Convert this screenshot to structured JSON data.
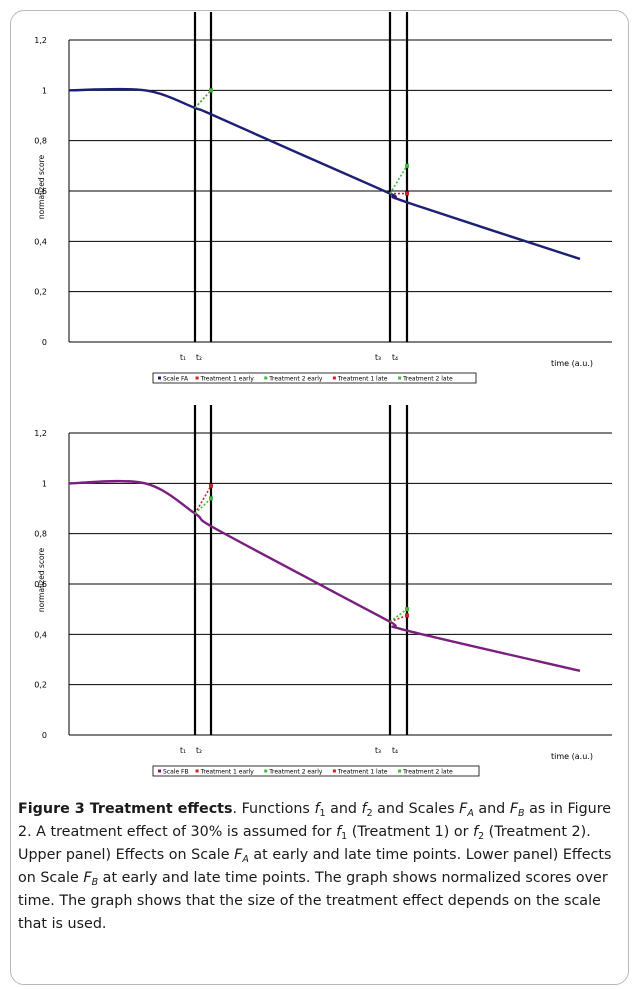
{
  "chart_data": [
    {
      "panel": "upper",
      "type": "line",
      "ylabel": "normalized score",
      "xlabel": "time (a.u.)",
      "ylim": [
        0,
        1.2
      ],
      "yticks": [
        "0",
        "0,2",
        "0,4",
        "0,6",
        "0,8",
        "1",
        "1,2"
      ],
      "xtick_labels": [
        "t₁",
        "t₂",
        "t₃",
        "t₄"
      ],
      "line_color": "#1c2075",
      "curve": {
        "name": "Scale FA",
        "start": 1.0,
        "end": 0.33
      },
      "vlines": [
        {
          "label": "t₁",
          "y": 0.93
        },
        {
          "label": "t₂",
          "y": 0.905
        },
        {
          "label": "t₃",
          "y": 0.59
        },
        {
          "label": "t₄",
          "y": 0.555
        }
      ],
      "effects": [
        {
          "series": "Treatment 1 early",
          "from": 0.93,
          "to": 1.0,
          "color": "#cc2222"
        },
        {
          "series": "Treatment 2 early",
          "from": 0.93,
          "to": 1.0,
          "color": "#3dbb3d"
        },
        {
          "series": "Treatment 1 late",
          "from": 0.59,
          "to": 0.59,
          "color": "#cc2222"
        },
        {
          "series": "Treatment 2 late",
          "from": 0.59,
          "to": 0.7,
          "color": "#3dbb3d"
        }
      ],
      "legend": [
        {
          "name": "Scale FA",
          "color": "#1c2075"
        },
        {
          "name": "Treatment 1 early",
          "color": "#cc2222"
        },
        {
          "name": "Treatment 2 early",
          "color": "#3dbb3d"
        },
        {
          "name": "Treatment 1 late",
          "color": "#cc2222"
        },
        {
          "name": "Treatment 2 late",
          "color": "#3dbb3d"
        }
      ]
    },
    {
      "panel": "lower",
      "type": "line",
      "ylabel": "normalized score",
      "xlabel": "time (a.u.)",
      "ylim": [
        0,
        1.2
      ],
      "yticks": [
        "0",
        "0,2",
        "0,4",
        "0,6",
        "0,8",
        "1",
        "1,2"
      ],
      "xtick_labels": [
        "t₁",
        "t₂",
        "t₃",
        "t₄"
      ],
      "line_color": "#7a1f7f",
      "curve": {
        "name": "Scale FB",
        "start": 1.0,
        "end": 0.255
      },
      "vlines": [
        {
          "label": "t₁",
          "y": 0.88
        },
        {
          "label": "t₂",
          "y": 0.83
        },
        {
          "label": "t₃",
          "y": 0.45
        },
        {
          "label": "t₄",
          "y": 0.415
        }
      ],
      "effects": [
        {
          "series": "Treatment 1 early",
          "from": 0.88,
          "to": 0.99,
          "color": "#cc2222"
        },
        {
          "series": "Treatment 2 early",
          "from": 0.88,
          "to": 0.94,
          "color": "#3dbb3d"
        },
        {
          "series": "Treatment 1 late",
          "from": 0.45,
          "to": 0.475,
          "color": "#cc2222"
        },
        {
          "series": "Treatment 2 late",
          "from": 0.45,
          "to": 0.5,
          "color": "#3dbb3d"
        }
      ],
      "legend": [
        {
          "name": "Scale FB",
          "color": "#7a1f7f"
        },
        {
          "name": "Treatment 1 early",
          "color": "#cc2222"
        },
        {
          "name": "Treatment 2 early",
          "color": "#3dbb3d"
        },
        {
          "name": "Treatment 1 late",
          "color": "#cc2222"
        },
        {
          "name": "Treatment 2 late",
          "color": "#3dbb3d"
        }
      ]
    }
  ],
  "caption": {
    "title": "Figure 3 Treatment effects",
    "p1": ". Functions ",
    "f": "f",
    "sub1": "1",
    "and": " and ",
    "sub2": "2",
    "p2": " and Scales ",
    "F": "F",
    "subA": "A",
    "p3": " and ",
    "subB": "B",
    "p4": " as in Figure 2. A treatment effect of 30% is assumed for ",
    "p5": " (Treatment 1) or ",
    "p6": " (Treatment 2). Upper panel) Effects on Scale ",
    "p7": " at early and late time points. Lower panel) Effects on Scale ",
    "p8": " at early and late time points. The graph shows normalized scores over time. The graph shows that the size of the treatment effect depends on the scale that is used."
  }
}
